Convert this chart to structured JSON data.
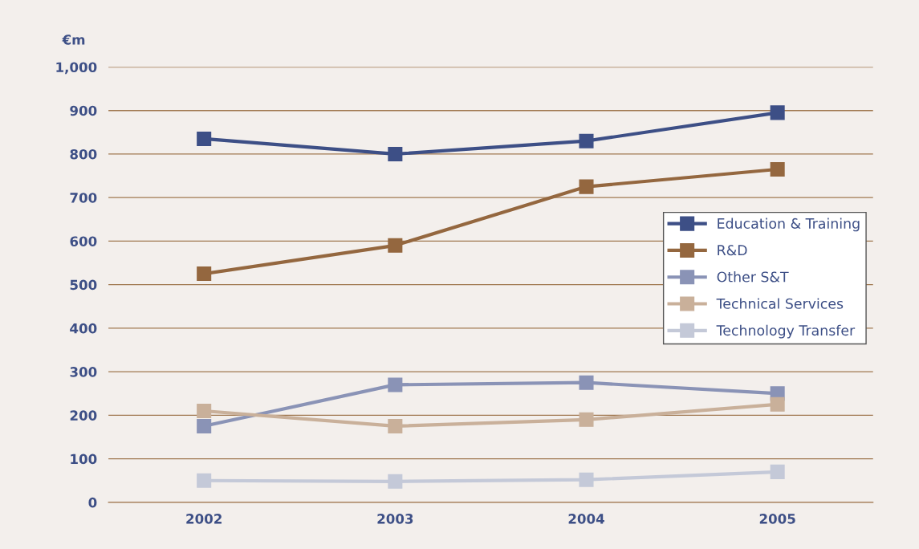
{
  "chart_data": {
    "type": "line",
    "ylabel": "€m",
    "categories": [
      "2002",
      "2003",
      "2004",
      "2005"
    ],
    "series": [
      {
        "name": "Education & Training",
        "color": "#3d4f86",
        "values": [
          835,
          800,
          830,
          895
        ]
      },
      {
        "name": "R&D",
        "color": "#94673f",
        "values": [
          525,
          590,
          725,
          765
        ]
      },
      {
        "name": "Other S&T",
        "color": "#8a93b6",
        "values": [
          175,
          270,
          275,
          250
        ]
      },
      {
        "name": "Technical Services",
        "color": "#c9b09a",
        "values": [
          210,
          175,
          190,
          225
        ]
      },
      {
        "name": "Technology Transfer",
        "color": "#c4c9d8",
        "values": [
          50,
          48,
          52,
          70
        ]
      }
    ],
    "ylim": [
      0,
      1000
    ],
    "yticks": [
      0,
      100,
      200,
      300,
      400,
      500,
      600,
      700,
      800,
      900,
      {
        "value": 1000,
        "label": "1,000"
      }
    ],
    "grid": "y",
    "legend": "right",
    "marker": "square",
    "line_style": "solid"
  }
}
